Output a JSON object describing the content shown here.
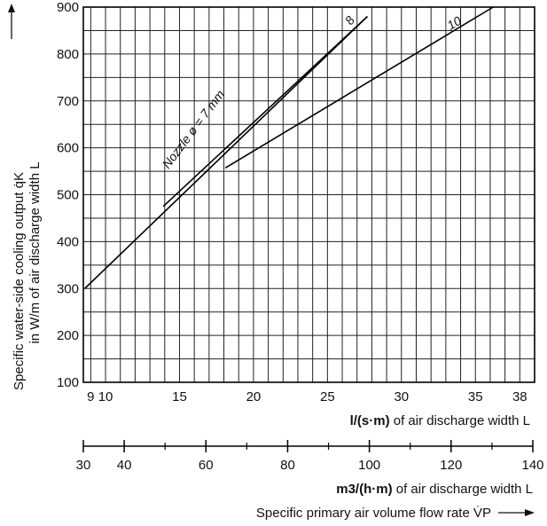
{
  "chart_data": {
    "type": "line",
    "y_axis": {
      "label_line1": "Specific water-side cooling output q̇K",
      "label_line2": "in W/m of air discharge width L",
      "ylim": [
        100,
        900
      ],
      "ticks": [
        100,
        200,
        300,
        400,
        500,
        600,
        700,
        800,
        900
      ]
    },
    "x_axis_primary": {
      "label_bold": "l/(s·m)",
      "label_rest": " of air discharge width L",
      "xlim": [
        8.5,
        39
      ],
      "ticks": [
        9,
        10,
        15,
        20,
        25,
        30,
        35,
        38
      ],
      "tick_labels": [
        "9",
        "10",
        "15",
        "20",
        "25",
        "30",
        "35",
        "38"
      ],
      "minor_ticks": [
        11,
        12,
        13,
        14,
        16,
        17,
        18,
        19,
        21,
        22,
        23,
        24,
        26,
        27,
        28,
        29,
        31,
        32,
        33,
        34,
        36,
        37
      ]
    },
    "x_axis_secondary": {
      "label_bold": "m3/(h·m)",
      "label_rest": " of air discharge width L",
      "ticks": [
        30,
        40,
        60,
        80,
        100,
        120,
        140
      ],
      "minor_ticks": [
        50,
        70,
        90,
        110,
        130
      ],
      "tick_labels": [
        "30",
        "40",
        "60",
        "80",
        "100",
        "120",
        "140"
      ]
    },
    "bottom_caption": "Specific primary air volume flow rate V̇P",
    "series": [
      {
        "name": "Nozzle ø = 7 mm",
        "x": [
          8.6,
          27.7
        ],
        "y": [
          300,
          880
        ]
      },
      {
        "name": "8",
        "x": [
          13.9,
          27.7
        ],
        "y": [
          475,
          880
        ]
      },
      {
        "name": "10",
        "x": [
          18.1,
          36.2
        ],
        "y": [
          557,
          900
        ]
      }
    ],
    "grid": true
  }
}
